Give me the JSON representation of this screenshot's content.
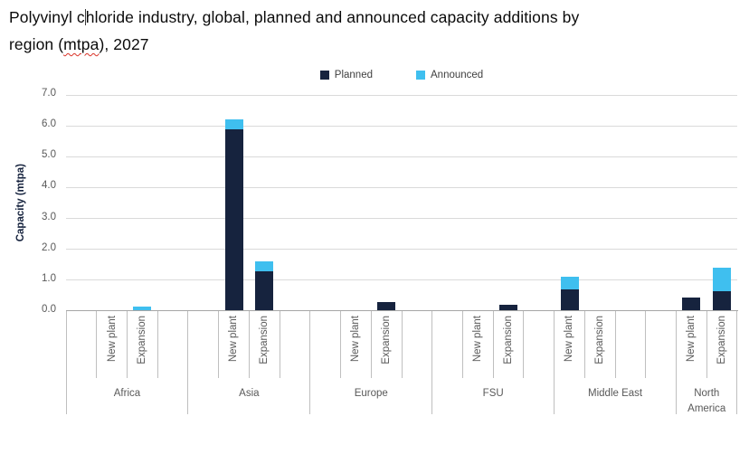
{
  "title": {
    "line1_pre_caret": "Polyvinyl c",
    "line1_post_caret": "hloride industry, global, planned and announced capacity additions by",
    "line2_pre": "region (",
    "line2_squiggle": "mtpa",
    "line2_post": "), 2027",
    "squiggle_color": "#D93025"
  },
  "chart_data": {
    "type": "bar",
    "stacked": true,
    "title": "Polyvinyl chloride industry, global, planned and announced capacity additions by region (mtpa), 2027",
    "ylabel": "Capacity (mtpa)",
    "xlabel": "",
    "ylim": [
      0,
      7
    ],
    "y_ticks": [
      "0.0",
      "1.0",
      "2.0",
      "3.0",
      "4.0",
      "5.0",
      "6.0",
      "7.0"
    ],
    "grid": "horizontal",
    "legend_position": "top",
    "series": [
      {
        "name": "Planned",
        "color": "#16233E"
      },
      {
        "name": "Announced",
        "color": "#3FBFEF"
      }
    ],
    "regions": [
      {
        "name": "Africa",
        "slots": [
          null,
          {
            "label": "New plant",
            "planned": 0,
            "announced": 0
          },
          {
            "label": "Expansion",
            "planned": 0,
            "announced": 0.15
          },
          null
        ]
      },
      {
        "name": "Asia",
        "slots": [
          null,
          {
            "label": "New plant",
            "planned": 5.9,
            "announced": 0.3
          },
          {
            "label": "Expansion",
            "planned": 1.3,
            "announced": 0.3
          },
          null
        ]
      },
      {
        "name": "Europe",
        "slots": [
          null,
          {
            "label": "New plant",
            "planned": 0,
            "announced": 0
          },
          {
            "label": "Expansion",
            "planned": 0.3,
            "announced": 0
          },
          null
        ]
      },
      {
        "name": "FSU",
        "slots": [
          null,
          {
            "label": "New plant",
            "planned": 0,
            "announced": 0
          },
          {
            "label": "Expansion",
            "planned": 0.2,
            "announced": 0
          },
          null
        ]
      },
      {
        "name": "Middle East",
        "slots": [
          {
            "label": "New plant",
            "planned": 0.7,
            "announced": 0.4
          },
          {
            "label": "Expansion",
            "planned": 0,
            "announced": 0
          },
          null,
          null
        ]
      },
      {
        "name": "North America",
        "slots": [
          {
            "label": "New plant",
            "planned": 0.45,
            "announced": 0
          },
          {
            "label": "Expansion",
            "planned": 0.65,
            "announced": 0.75
          }
        ]
      }
    ]
  },
  "colors": {
    "planned": "#16233E",
    "announced": "#3FBFEF",
    "gridline": "#DADADA",
    "axis_line": "#A6A6A6",
    "axis_text": "#595959"
  }
}
